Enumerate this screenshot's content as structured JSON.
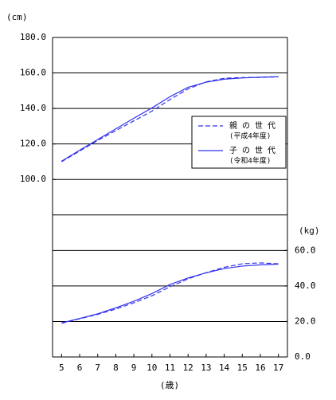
{
  "chart_data": {
    "type": "line",
    "y_unit": "(cm)",
    "y2_unit": "(kg)",
    "x_unit": "(歳)",
    "x": [
      5,
      6,
      7,
      8,
      9,
      10,
      11,
      12,
      13,
      14,
      15,
      16,
      17
    ],
    "xlim": [
      4.5,
      17.5
    ],
    "xticks": [
      5,
      6,
      7,
      8,
      9,
      10,
      11,
      12,
      13,
      14,
      15,
      16,
      17
    ],
    "ylim": [
      0,
      180
    ],
    "yticks": [
      {
        "value": 100,
        "label": "100.0"
      },
      {
        "value": 120,
        "label": "120.0"
      },
      {
        "value": 140,
        "label": "140.0"
      },
      {
        "value": 160,
        "label": "160.0"
      },
      {
        "value": 180,
        "label": "180.0"
      }
    ],
    "y2lim": [
      0,
      180
    ],
    "y2ticks": [
      {
        "value": 0,
        "label": "0.0"
      },
      {
        "value": 20,
        "label": "20.0"
      },
      {
        "value": 40,
        "label": "40.0"
      },
      {
        "value": 60,
        "label": "60.0"
      }
    ],
    "grid_values": [
      20,
      40,
      60,
      80,
      100,
      120,
      140,
      160,
      180
    ],
    "legend": [
      {
        "name": "親 の 世 代",
        "period": "(平成4年度)",
        "dashed": true
      },
      {
        "name": "子 の 世 代",
        "period": "(令和4年度)",
        "dashed": false
      }
    ],
    "color": "#3333ee",
    "series": [
      {
        "legend": 0,
        "values": [
          110,
          116,
          122,
          127.5,
          133,
          138.5,
          145,
          151,
          155,
          157,
          157.4,
          157.5,
          157.8
        ]
      },
      {
        "legend": 1,
        "values": [
          110.3,
          116.5,
          122.5,
          128.5,
          134.5,
          140.3,
          146.6,
          151.9,
          154.8,
          156.5,
          157.2,
          157.6,
          157.9
        ]
      },
      {
        "legend": 0,
        "axis": "y2",
        "values": [
          19,
          21.5,
          24,
          27,
          30.5,
          34.5,
          39.5,
          44,
          47.5,
          50.5,
          52.5,
          53,
          52.5
        ]
      },
      {
        "legend": 1,
        "axis": "y2",
        "values": [
          19.2,
          21.7,
          24.3,
          27.7,
          31.4,
          35.7,
          40.8,
          44.5,
          47.4,
          49.8,
          51.2,
          51.9,
          52.3
        ]
      }
    ]
  }
}
